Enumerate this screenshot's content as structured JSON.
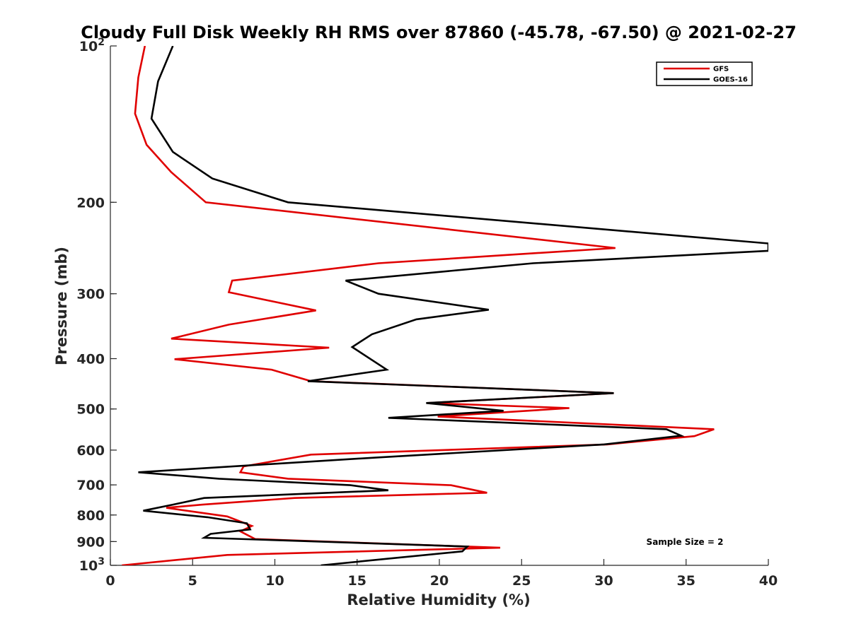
{
  "chart_data": {
    "type": "line",
    "title": "Cloudy Full Disk Weekly RH RMS over 87860 (-45.78, -67.50) @ 2021-02-27",
    "xlabel": "Relative Humidity (%)",
    "ylabel": "Pressure (mb)",
    "xlim": [
      0,
      40
    ],
    "ylim": [
      100,
      1000
    ],
    "yscale": "log",
    "y_reversed": true,
    "x_ticks": [
      "0",
      "5",
      "10",
      "15",
      "20",
      "25",
      "30",
      "35",
      "40"
    ],
    "x_tick_values": [
      0,
      5,
      10,
      15,
      20,
      25,
      30,
      35,
      40
    ],
    "y_ticks": [
      {
        "value": 100,
        "label": "10",
        "exp": "2"
      },
      {
        "value": 200,
        "label": "200",
        "exp": ""
      },
      {
        "value": 300,
        "label": "300",
        "exp": ""
      },
      {
        "value": 400,
        "label": "400",
        "exp": ""
      },
      {
        "value": 500,
        "label": "500",
        "exp": ""
      },
      {
        "value": 600,
        "label": "600",
        "exp": ""
      },
      {
        "value": 700,
        "label": "700",
        "exp": ""
      },
      {
        "value": 800,
        "label": "800",
        "exp": ""
      },
      {
        "value": 900,
        "label": "900",
        "exp": ""
      },
      {
        "value": 1000,
        "label": "10",
        "exp": "3"
      }
    ],
    "grid": false,
    "legend_position": "top-right",
    "annotation": "Sample Size = 2",
    "series": [
      {
        "name": "GFS",
        "color": "#e00000",
        "points": [
          [
            2.1,
            100
          ],
          [
            1.7,
            115
          ],
          [
            1.5,
            135
          ],
          [
            2.2,
            155
          ],
          [
            3.7,
            175
          ],
          [
            5.8,
            200
          ],
          [
            30.7,
            245
          ],
          [
            16.3,
            262
          ],
          [
            7.4,
            283
          ],
          [
            7.2,
            298
          ],
          [
            12.5,
            323
          ],
          [
            7.2,
            344
          ],
          [
            3.7,
            366
          ],
          [
            13.3,
            381
          ],
          [
            3.9,
            401
          ],
          [
            9.8,
            420
          ],
          [
            12.2,
            442
          ],
          [
            30.6,
            466
          ],
          [
            19.3,
            487
          ],
          [
            27.9,
            498
          ],
          [
            19.9,
            517
          ],
          [
            36.7,
            547
          ],
          [
            35.5,
            564
          ],
          [
            30.2,
            585
          ],
          [
            12.2,
            612
          ],
          [
            8.1,
            645
          ],
          [
            7.9,
            662
          ],
          [
            10.8,
            681
          ],
          [
            20.7,
            701
          ],
          [
            22.9,
            725
          ],
          [
            11.2,
            742
          ],
          [
            5.6,
            764
          ],
          [
            3.4,
            775
          ],
          [
            7.1,
            805
          ],
          [
            8.6,
            840
          ],
          [
            7.9,
            860
          ],
          [
            8.8,
            890
          ],
          [
            23.7,
            925
          ],
          [
            7.1,
            955
          ],
          [
            0.7,
            1000
          ]
        ]
      },
      {
        "name": "GOES-16",
        "color": "#000000",
        "points": [
          [
            3.8,
            100
          ],
          [
            2.9,
            117
          ],
          [
            2.5,
            138
          ],
          [
            3.8,
            160
          ],
          [
            6.2,
            180
          ],
          [
            10.8,
            200
          ],
          [
            40.0,
            240
          ],
          [
            40.0,
            248
          ],
          [
            25.7,
            262
          ],
          [
            14.3,
            283
          ],
          [
            16.3,
            300
          ],
          [
            23.0,
            322
          ],
          [
            18.6,
            336
          ],
          [
            15.9,
            359
          ],
          [
            14.7,
            380
          ],
          [
            16.8,
            420
          ],
          [
            12.0,
            442
          ],
          [
            30.6,
            466
          ],
          [
            19.2,
            487
          ],
          [
            23.9,
            504
          ],
          [
            16.9,
            520
          ],
          [
            33.8,
            547
          ],
          [
            34.7,
            563
          ],
          [
            30.0,
            585
          ],
          [
            16.2,
            620
          ],
          [
            1.7,
            662
          ],
          [
            6.6,
            681
          ],
          [
            14.6,
            701
          ],
          [
            16.9,
            717
          ],
          [
            5.7,
            742
          ],
          [
            3.8,
            764
          ],
          [
            2.0,
            785
          ],
          [
            5.9,
            808
          ],
          [
            8.3,
            830
          ],
          [
            8.5,
            853
          ],
          [
            6.1,
            870
          ],
          [
            5.7,
            885
          ],
          [
            21.7,
            920
          ],
          [
            21.4,
            940
          ],
          [
            12.8,
            1000
          ]
        ]
      }
    ]
  }
}
